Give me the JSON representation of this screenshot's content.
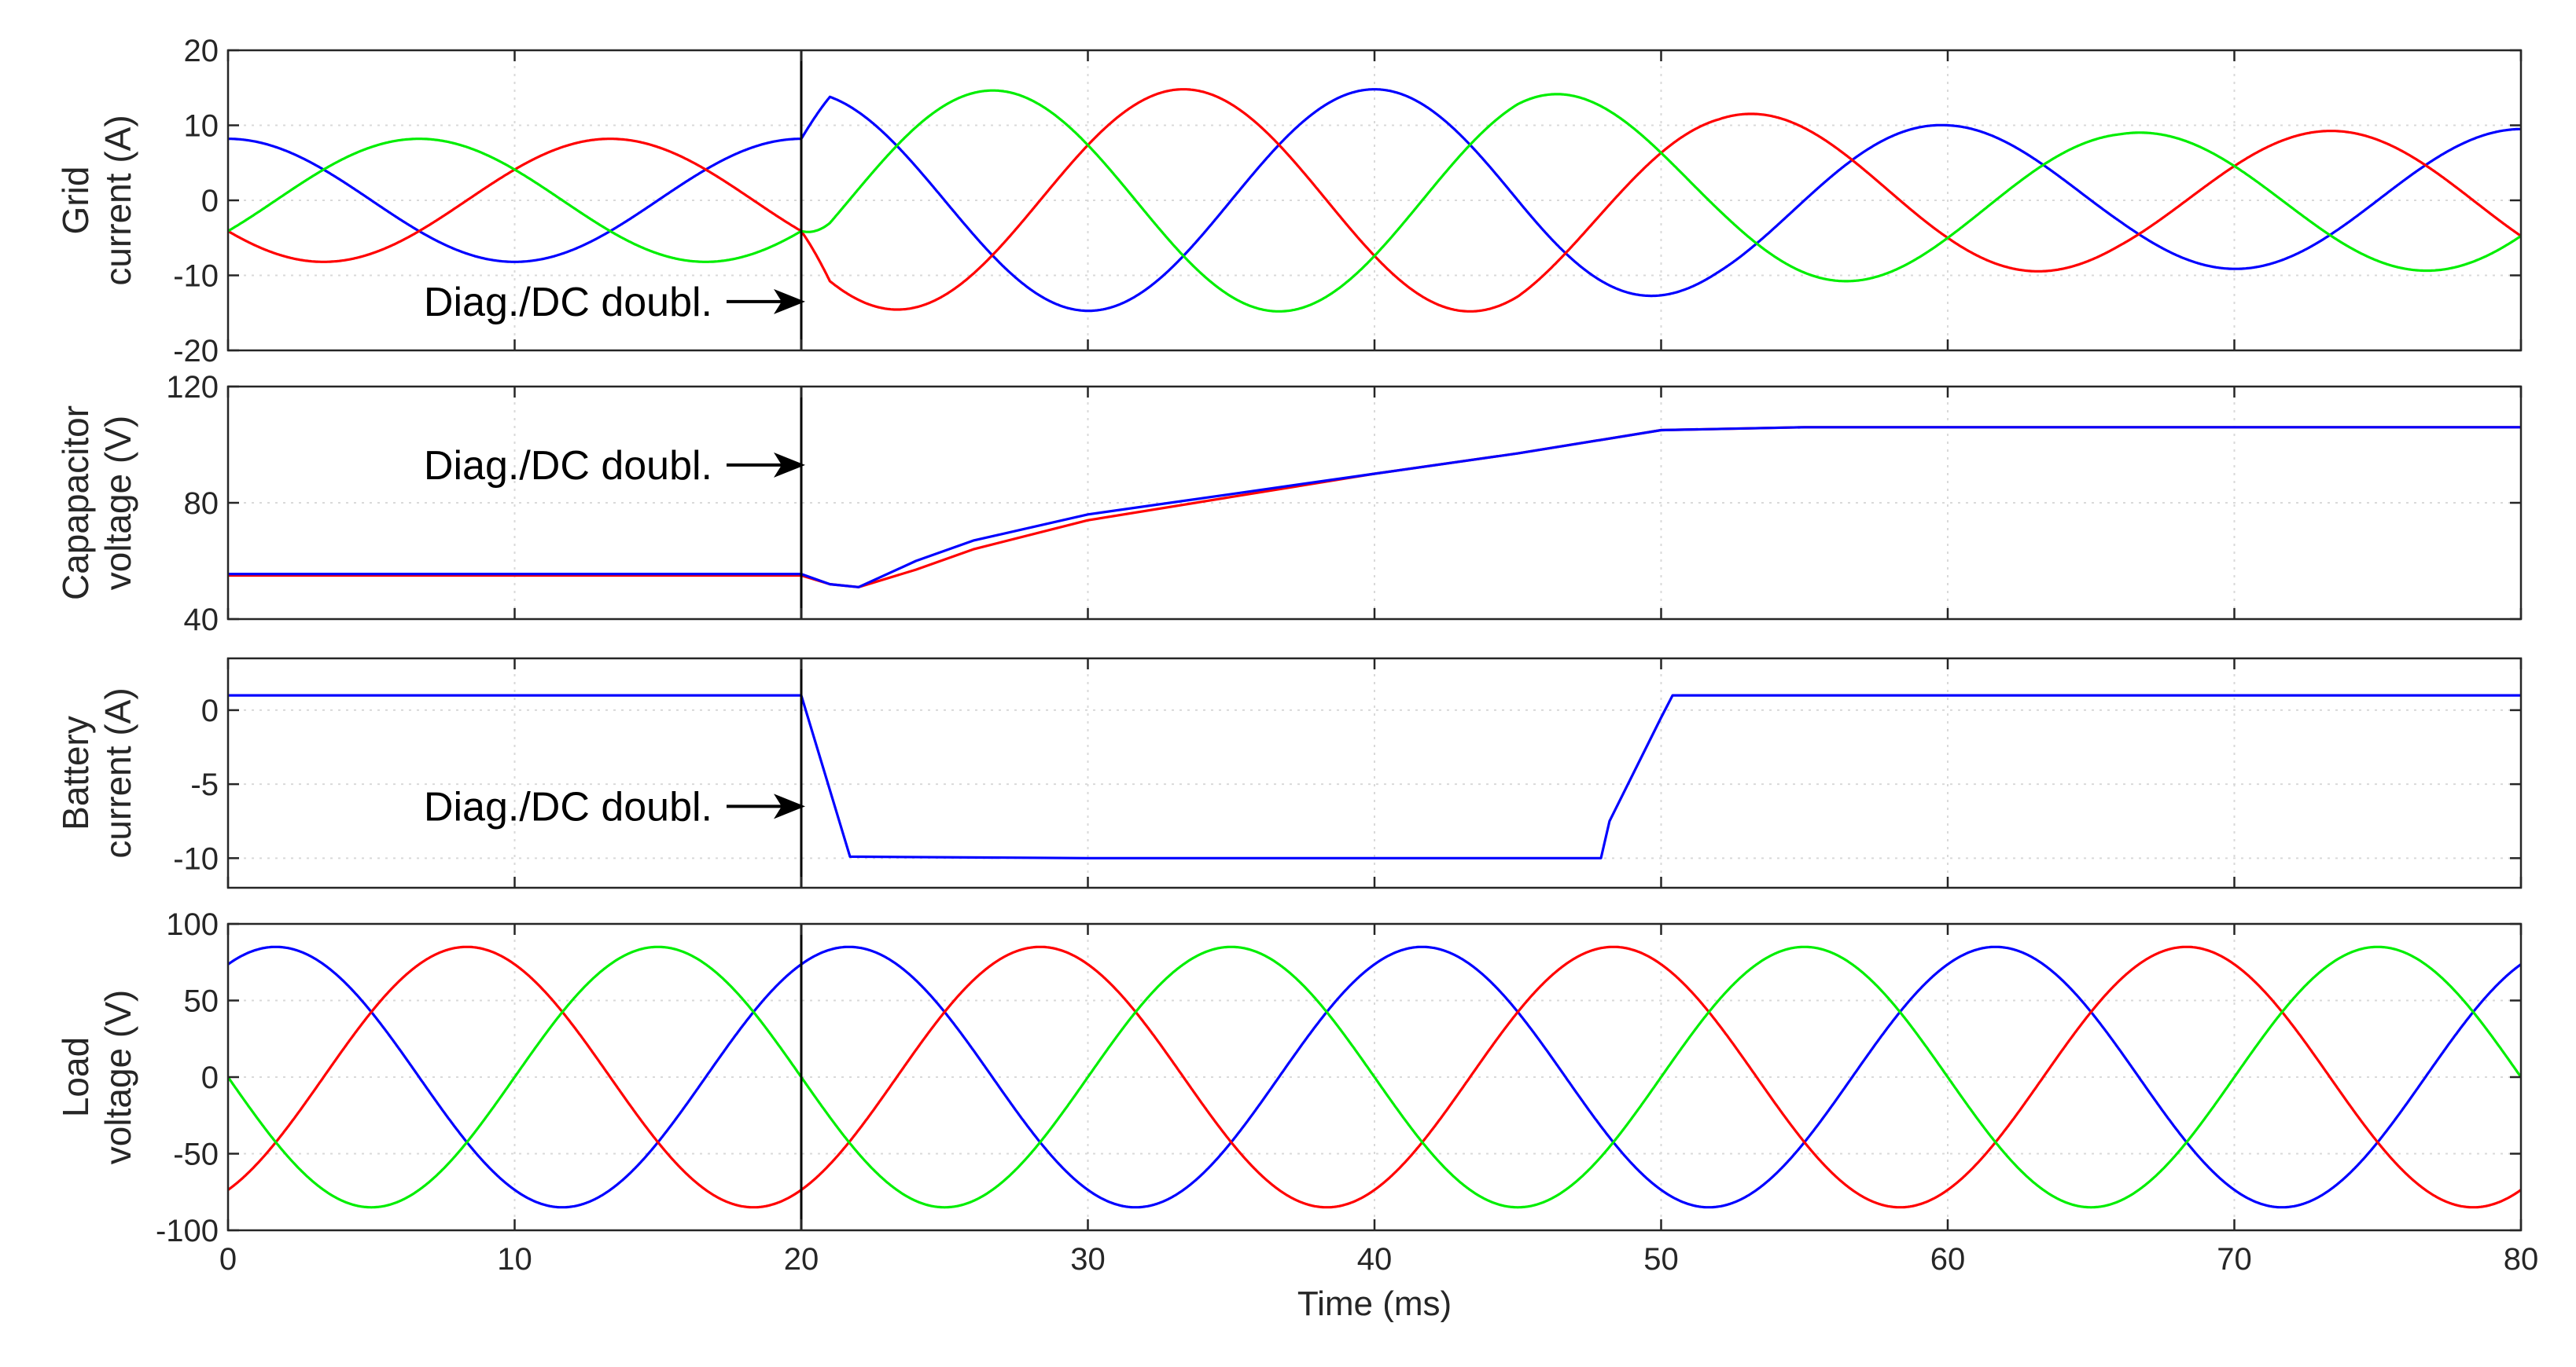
{
  "chart_data": [
    {
      "type": "line",
      "id": "grid",
      "ylabel_lines": [
        "Grid",
        "current (A)"
      ],
      "ylim": [
        -20,
        20
      ],
      "yticks": [
        -20,
        -10,
        0,
        10,
        20
      ],
      "ytick_labels": [
        "-20",
        "-10",
        "0",
        "10",
        "20"
      ],
      "annotation": "Diag./DC doubl.",
      "annotation_y": -13.5,
      "waveform": {
        "kind": "three_phase_sine",
        "period_ms": 20,
        "amplitude_before": 8.2,
        "amplitude_after_profile": [
          [
            20,
            8.2
          ],
          [
            21,
            14.5
          ],
          [
            33,
            14.8
          ],
          [
            45,
            14.8
          ],
          [
            52,
            11.8
          ],
          [
            60,
            10.0
          ],
          [
            66,
            9.0
          ],
          [
            72,
            9.2
          ],
          [
            80,
            9.5
          ]
        ],
        "phase_offsets_deg": [
          90,
          210,
          330
        ]
      },
      "series": [
        {
          "name": "phase-a",
          "color": "#0000ff"
        },
        {
          "name": "phase-b",
          "color": "#ff0000"
        },
        {
          "name": "phase-c",
          "color": "#00ee00"
        }
      ]
    },
    {
      "type": "line",
      "id": "capacitor",
      "ylabel_lines": [
        "Capapacitor",
        "voltage (V)"
      ],
      "ylim": [
        40,
        120
      ],
      "yticks": [
        40,
        80,
        120
      ],
      "ytick_labels": [
        "40",
        "80",
        "120"
      ],
      "annotation": "Diag./DC doubl.",
      "annotation_y": 93,
      "series": [
        {
          "name": "capacitor-1",
          "color": "#ff0000",
          "x": [
            0,
            20,
            21,
            22,
            24,
            26,
            30,
            35,
            40,
            45,
            50,
            55,
            60,
            70,
            80
          ],
          "y": [
            55,
            55,
            52,
            51,
            57,
            64,
            74,
            82,
            90,
            97,
            105,
            106,
            106,
            106,
            106
          ]
        },
        {
          "name": "capacitor-2",
          "color": "#0000ff",
          "x": [
            0,
            20,
            21,
            22,
            24,
            26,
            30,
            35,
            40,
            45,
            50,
            55,
            60,
            70,
            80
          ],
          "y": [
            55.5,
            55.5,
            52,
            51,
            60,
            67,
            76,
            83,
            90,
            97,
            105,
            106,
            106,
            106,
            106
          ]
        }
      ]
    },
    {
      "type": "line",
      "id": "battery",
      "ylabel_lines": [
        "Battery",
        "current (A)"
      ],
      "ylim": [
        -12,
        3.5
      ],
      "yticks": [
        -10,
        -5,
        0
      ],
      "ytick_labels": [
        "-10",
        "-5",
        "0"
      ],
      "annotation": "Diag./DC doubl.",
      "annotation_y": -6.5,
      "series": [
        {
          "name": "battery-current",
          "color": "#0000ff",
          "x": [
            0,
            20,
            21.7,
            30,
            40,
            47.9,
            48.2,
            50,
            50.4,
            60,
            70,
            80
          ],
          "y": [
            1,
            1,
            -9.9,
            -10,
            -10,
            -10,
            -7.5,
            -0.5,
            1,
            1,
            1,
            1
          ]
        }
      ]
    },
    {
      "type": "line",
      "id": "load",
      "ylabel_lines": [
        "Load",
        "voltage (V)"
      ],
      "ylim": [
        -100,
        100
      ],
      "yticks": [
        -100,
        -50,
        0,
        50,
        100
      ],
      "ytick_labels": [
        "-100",
        "-50",
        "0",
        "50",
        "100"
      ],
      "waveform": {
        "kind": "three_phase_sine",
        "period_ms": 20,
        "amplitude": 85,
        "phase_offsets_deg": [
          60,
          300,
          180
        ]
      },
      "series": [
        {
          "name": "phase-a",
          "color": "#0000ff"
        },
        {
          "name": "phase-b",
          "color": "#ff0000"
        },
        {
          "name": "phase-c",
          "color": "#00ee00"
        }
      ]
    }
  ],
  "shared_x": {
    "xlim": [
      0,
      80
    ],
    "xticks": [
      0,
      10,
      20,
      30,
      40,
      50,
      60,
      70,
      80
    ],
    "xtick_labels": [
      "0",
      "10",
      "20",
      "30",
      "40",
      "50",
      "60",
      "70",
      "80"
    ],
    "xlabel": "Time (ms)",
    "event_time": 20,
    "grid": true
  }
}
